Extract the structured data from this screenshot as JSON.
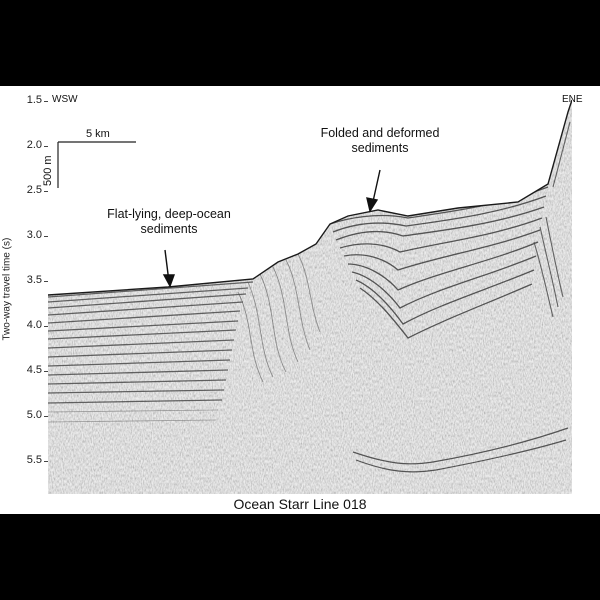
{
  "figure": {
    "caption": "Ocean Starr Line 018",
    "left_label": "WSW",
    "right_label": "ENE",
    "y_axis_label": "Two-way travel time (s)",
    "y_ticks": [
      "1.5",
      "2.0",
      "2.5",
      "3.0",
      "3.5",
      "4.0",
      "4.5",
      "5.0",
      "5.5"
    ],
    "horizontal_scale": "5 km",
    "vertical_scale": "500 m",
    "annotations": {
      "flat": "Flat-lying, deep-ocean sediments",
      "folded": "Folded and deformed sediments"
    }
  }
}
